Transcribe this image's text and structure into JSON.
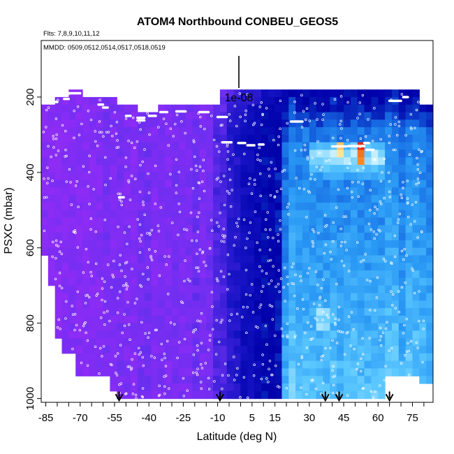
{
  "chart_data": {
    "type": "heatmap",
    "title": "ATOM4 Northbound CONBEU_GEOS5",
    "subtitle_flights": "Flts: 7,8,9,10,11,12",
    "subtitle_dates": "MMDD: 0509,0512,0514,0517,0518,0519",
    "scale_label": "1e-08",
    "xlabel": "Latitude (deg N)",
    "ylabel": "PSXC (mbar)",
    "x_ticks": [
      "-85",
      "-70",
      "-55",
      "-40",
      "-25",
      "-10",
      "5",
      "15",
      "30",
      "45",
      "60",
      "75"
    ],
    "x_tick_values": [
      -85,
      -70,
      -55,
      -40,
      -25,
      -10,
      5,
      15,
      30,
      45,
      60,
      75
    ],
    "y_ticks": [
      "200",
      "400",
      "600",
      "800",
      "1000"
    ],
    "y_tick_values": [
      200,
      400,
      600,
      800,
      1000
    ],
    "xlim": [
      -87,
      84
    ],
    "ylim": [
      1010,
      50
    ],
    "y_reversed": true,
    "arrow_latitudes": [
      -53,
      -9,
      37,
      43,
      65
    ],
    "colormap": [
      "#8c2cf5",
      "#6a2ff0",
      "#3a1fd8",
      "#1010c0",
      "#0000a8",
      "#1565e0",
      "#2a9af5",
      "#5cc8ff",
      "#c8f0ff",
      "#fff6b0",
      "#ff9a2a",
      "#e01010"
    ],
    "colors": {
      "low": "#8c2cf5",
      "mid": "#0000a8",
      "high": "#e01010",
      "background": "#ffffff"
    }
  }
}
